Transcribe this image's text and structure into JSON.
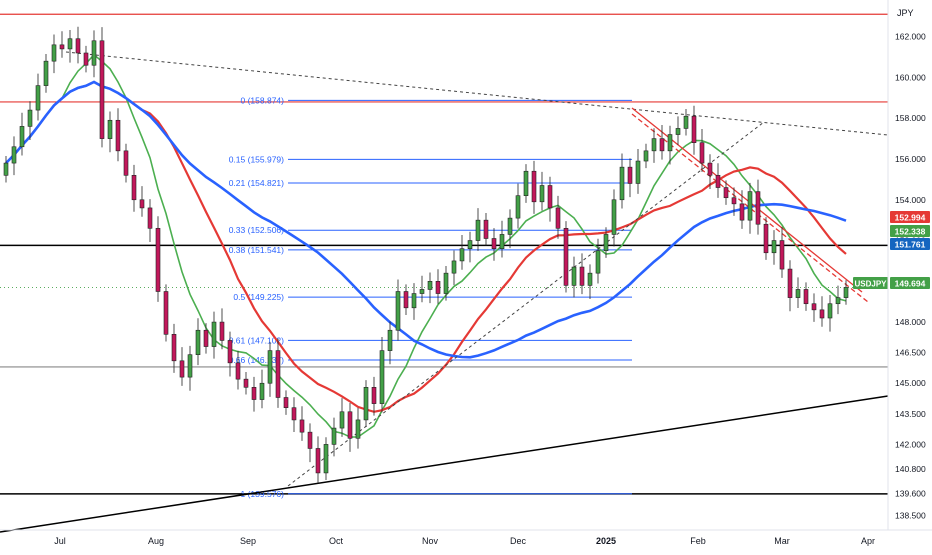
{
  "chart_data": {
    "type": "candlestick",
    "symbol": "USDJPY",
    "currency_label": "JPY",
    "y_axis": {
      "range": [
        137.8,
        163.8
      ],
      "ticks": [
        "162.000",
        "160.000",
        "158.000",
        "156.000",
        "154.000",
        "152.000",
        "150.000",
        "148.000",
        "146.500",
        "145.000",
        "143.500",
        "142.000",
        "140.800",
        "139.600",
        "138.500"
      ]
    },
    "x_axis": {
      "labels": [
        "Jul",
        "Aug",
        "Sep",
        "Oct",
        "Nov",
        "Dec",
        "2025",
        "Feb",
        "Mar",
        "Apr"
      ]
    },
    "price_tags": [
      {
        "value": 152.994,
        "label": "152.994",
        "color": "#e53935"
      },
      {
        "value": 152.338,
        "label": "152.338",
        "color": "#43a047"
      },
      {
        "value": 151.761,
        "label": "151.761",
        "color": "#1565c0"
      },
      {
        "value": 149.694,
        "label": "149.694",
        "color": "#43a047",
        "name": "USDJPY"
      }
    ],
    "fibonacci": [
      {
        "ratio": "0",
        "value": 158.874,
        "label": "0 (158.874)"
      },
      {
        "ratio": "0.15",
        "value": 155.979,
        "label": "0.15 (155.979)"
      },
      {
        "ratio": "0.21",
        "value": 154.821,
        "label": "0.21 (154.821)"
      },
      {
        "ratio": "0.33",
        "value": 152.506,
        "label": "0.33 (152.506)"
      },
      {
        "ratio": "0.38",
        "value": 151.541,
        "label": "0.38 (151.541)"
      },
      {
        "ratio": "0.5",
        "value": 149.225,
        "label": "0.5 (149.225)"
      },
      {
        "ratio": "0.61",
        "value": 147.102,
        "label": "0.61 (147.102)"
      },
      {
        "ratio": "0.66",
        "value": 146.137,
        "label": "0.66 (146.137)"
      },
      {
        "ratio": "1",
        "value": 139.576,
        "label": "1 (139.576)"
      }
    ],
    "horizontal_levels": [
      {
        "value": 163.1,
        "color": "#e53935"
      },
      {
        "value": 158.8,
        "color": "#e53935"
      },
      {
        "value": 151.76,
        "color": "#000000"
      },
      {
        "value": 145.8,
        "color": "#888888"
      },
      {
        "value": 139.57,
        "color": "#000000"
      }
    ],
    "closes": [
      155.8,
      156.6,
      157.6,
      158.4,
      159.6,
      160.8,
      161.6,
      161.4,
      161.9,
      161.2,
      160.6,
      161.8,
      157.0,
      157.9,
      156.4,
      155.2,
      154.0,
      153.6,
      152.6,
      149.5,
      147.4,
      146.1,
      145.3,
      146.4,
      147.6,
      146.8,
      148.0,
      147.1,
      146.0,
      145.2,
      144.8,
      144.2,
      145.0,
      146.6,
      144.3,
      143.8,
      143.2,
      142.6,
      141.8,
      140.6,
      142.0,
      142.8,
      143.6,
      142.3,
      143.2,
      144.8,
      144.0,
      146.6,
      147.6,
      149.5,
      148.7,
      149.4,
      149.6,
      150.0,
      149.4,
      150.4,
      151.0,
      151.6,
      152.0,
      153.0,
      152.1,
      151.6,
      152.3,
      153.1,
      154.2,
      155.4,
      153.9,
      154.7,
      153.6,
      152.6,
      149.8,
      150.7,
      149.8,
      150.4,
      151.5,
      152.3,
      154.0,
      155.6,
      154.8,
      155.9,
      156.4,
      157.0,
      156.4,
      157.2,
      157.5,
      158.1,
      156.8,
      155.8,
      155.2,
      154.6,
      154.1,
      153.8,
      153.0,
      154.4,
      152.8,
      151.4,
      152.0,
      150.6,
      149.2,
      149.6,
      148.9,
      148.6,
      148.2,
      148.9,
      149.2,
      149.7
    ]
  }
}
